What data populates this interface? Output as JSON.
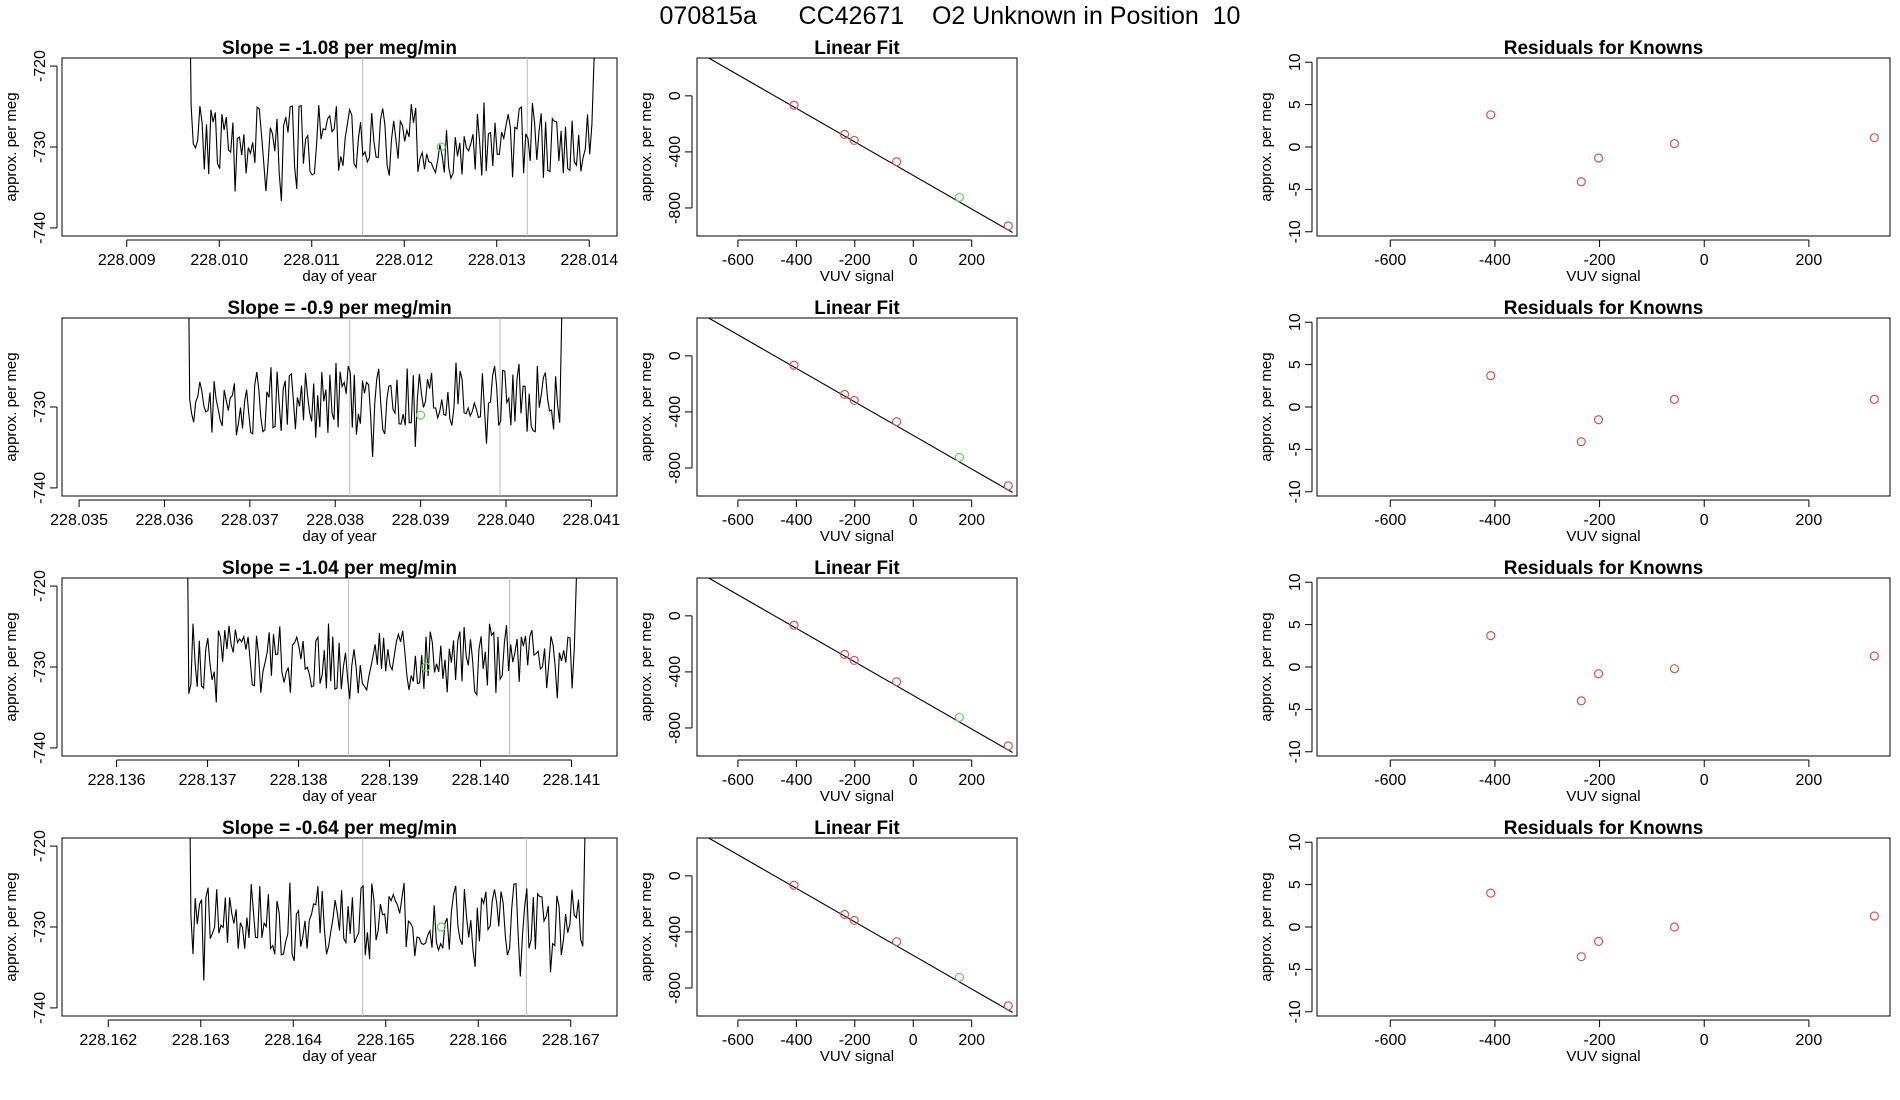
{
  "figure": {
    "title": "070815a      CC42671    O2 Unknown in Position  10",
    "colors": {
      "line": "#000000",
      "known": "#d9534f",
      "unknown": "#5cd65c",
      "marker": "#bbbbbb"
    }
  },
  "chart_data": [
    {
      "type": "line",
      "panel": "timeseries",
      "row": 0,
      "title": "Slope =  -1.08  per meg/min",
      "xlabel": "day of year",
      "ylabel": "approx. per meg",
      "xlim": [
        228.0083,
        228.0143
      ],
      "ylim": [
        -741,
        -719
      ],
      "xticks": [
        "228.009",
        "228.010",
        "228.011",
        "228.012",
        "228.013",
        "228.014"
      ],
      "yticks": [
        "-720",
        "-730",
        "-740"
      ],
      "start": 228.0096,
      "end": 228.0141,
      "markers": [
        228.01155,
        228.01333
      ],
      "unknown_point": [
        228.0124,
        -730.0
      ],
      "series": [
        {
          "name": "signal",
          "x": [],
          "y": []
        }
      ]
    },
    {
      "type": "scatter",
      "panel": "linear-fit",
      "row": 0,
      "title": "Linear Fit",
      "xlabel": "VUV signal",
      "ylabel": "approx. per meg",
      "xlim": [
        -740,
        355
      ],
      "ylim": [
        -1000,
        270
      ],
      "xticks": [
        "-600",
        "-400",
        "-200",
        "0",
        "200"
      ],
      "yticks": [
        "0",
        "-400",
        "-800"
      ],
      "fit_line": {
        "x": [
          -700,
          340
        ],
        "y": [
          270,
          -975
        ]
      },
      "knowns": {
        "x": [
          -408,
          -235,
          -202,
          -57,
          325
        ],
        "y": [
          -67,
          -275,
          -318,
          -470,
          -928
        ]
      },
      "unknowns": {
        "x": [
          158
        ],
        "y": [
          -724
        ]
      }
    },
    {
      "type": "scatter",
      "panel": "residuals",
      "row": 0,
      "title": "Residuals for Knowns",
      "xlabel": "VUV signal",
      "ylabel": "approx. per meg",
      "xlim": [
        -740,
        355
      ],
      "ylim": [
        -10.5,
        10.5
      ],
      "xticks": [
        "-600",
        "-400",
        "-200",
        "0",
        "200"
      ],
      "yticks": [
        "10",
        "5",
        "0",
        "-5",
        "-10"
      ],
      "knowns": {
        "x": [
          -408,
          -235,
          -202,
          -57,
          325
        ],
        "y": [
          3.8,
          -4.1,
          -1.3,
          0.4,
          1.1
        ]
      }
    },
    {
      "type": "line",
      "panel": "timeseries",
      "row": 1,
      "title": "Slope =  -0.9  per meg/min",
      "xlabel": "day of year",
      "ylabel": "approx. per meg",
      "xlim": [
        228.0348,
        228.0413
      ],
      "ylim": [
        -741,
        -719
      ],
      "xticks": [
        "228.035",
        "228.036",
        "228.037",
        "228.038",
        "228.039",
        "228.040",
        "228.041"
      ],
      "yticks": [
        "-730",
        "-740"
      ],
      "start": 228.0362,
      "end": 228.0407,
      "markers": [
        228.03817,
        228.03993
      ],
      "unknown_point": [
        228.039,
        -731.0
      ],
      "series": [
        {
          "name": "signal",
          "x": [],
          "y": []
        }
      ]
    },
    {
      "type": "scatter",
      "panel": "linear-fit",
      "row": 1,
      "title": "Linear Fit",
      "xlabel": "VUV signal",
      "ylabel": "approx. per meg",
      "xlim": [
        -740,
        355
      ],
      "ylim": [
        -1000,
        270
      ],
      "xticks": [
        "-600",
        "-400",
        "-200",
        "0",
        "200"
      ],
      "yticks": [
        "0",
        "-400",
        "-800"
      ],
      "fit_line": {
        "x": [
          -700,
          340
        ],
        "y": [
          270,
          -975
        ]
      },
      "knowns": {
        "x": [
          -408,
          -235,
          -202,
          -57,
          325
        ],
        "y": [
          -67,
          -275,
          -318,
          -470,
          -928
        ]
      },
      "unknowns": {
        "x": [
          158
        ],
        "y": [
          -724
        ]
      }
    },
    {
      "type": "scatter",
      "panel": "residuals",
      "row": 1,
      "title": "Residuals for Knowns",
      "xlabel": "VUV signal",
      "ylabel": "approx. per meg",
      "xlim": [
        -740,
        355
      ],
      "ylim": [
        -10.5,
        10.5
      ],
      "xticks": [
        "-600",
        "-400",
        "-200",
        "0",
        "200"
      ],
      "yticks": [
        "10",
        "5",
        "0",
        "-5",
        "-10"
      ],
      "knowns": {
        "x": [
          -408,
          -235,
          -202,
          -57,
          325
        ],
        "y": [
          3.7,
          -4.1,
          -1.5,
          0.9,
          0.9
        ]
      }
    },
    {
      "type": "line",
      "panel": "timeseries",
      "row": 2,
      "title": "Slope =  -1.04  per meg/min",
      "xlabel": "day of year",
      "ylabel": "approx. per meg",
      "xlim": [
        228.1354,
        228.1415
      ],
      "ylim": [
        -741,
        -719
      ],
      "xticks": [
        "228.136",
        "228.137",
        "228.138",
        "228.139",
        "228.140",
        "228.141"
      ],
      "yticks": [
        "-720",
        "-730",
        "-740"
      ],
      "start": 228.1367,
      "end": 228.1411,
      "markers": [
        228.13855,
        228.14032
      ],
      "unknown_point": [
        228.1394,
        -730.0
      ],
      "series": [
        {
          "name": "signal",
          "x": [],
          "y": []
        }
      ]
    },
    {
      "type": "scatter",
      "panel": "linear-fit",
      "row": 2,
      "title": "Linear Fit",
      "xlabel": "VUV signal",
      "ylabel": "approx. per meg",
      "xlim": [
        -740,
        355
      ],
      "ylim": [
        -1000,
        270
      ],
      "xticks": [
        "-600",
        "-400",
        "-200",
        "0",
        "200"
      ],
      "yticks": [
        "0",
        "-400",
        "-800"
      ],
      "fit_line": {
        "x": [
          -700,
          340
        ],
        "y": [
          270,
          -975
        ]
      },
      "knowns": {
        "x": [
          -408,
          -235,
          -202,
          -57,
          325
        ],
        "y": [
          -67,
          -275,
          -318,
          -470,
          -928
        ]
      },
      "unknowns": {
        "x": [
          158
        ],
        "y": [
          -724
        ]
      }
    },
    {
      "type": "scatter",
      "panel": "residuals",
      "row": 2,
      "title": "Residuals for Knowns",
      "xlabel": "VUV signal",
      "ylabel": "approx. per meg",
      "xlim": [
        -740,
        355
      ],
      "ylim": [
        -10.5,
        10.5
      ],
      "xticks": [
        "-600",
        "-400",
        "-200",
        "0",
        "200"
      ],
      "yticks": [
        "10",
        "5",
        "0",
        "-5",
        "-10"
      ],
      "knowns": {
        "x": [
          -408,
          -235,
          -202,
          -57,
          325
        ],
        "y": [
          3.7,
          -4.0,
          -0.8,
          -0.2,
          1.3
        ]
      }
    },
    {
      "type": "line",
      "panel": "timeseries",
      "row": 3,
      "title": "Slope =  -0.64  per meg/min",
      "xlabel": "day of year",
      "ylabel": "approx. per meg",
      "xlim": [
        228.1615,
        228.1675
      ],
      "ylim": [
        -741,
        -719
      ],
      "xticks": [
        "228.162",
        "228.163",
        "228.164",
        "228.165",
        "228.166",
        "228.167"
      ],
      "yticks": [
        "-720",
        "-730",
        "-740"
      ],
      "start": 228.1628,
      "end": 228.1672,
      "markers": [
        228.16475,
        228.16652
      ],
      "unknown_point": [
        228.1656,
        -730.0
      ],
      "series": [
        {
          "name": "signal",
          "x": [],
          "y": []
        }
      ]
    },
    {
      "type": "scatter",
      "panel": "linear-fit",
      "row": 3,
      "title": "Linear Fit",
      "xlabel": "VUV signal",
      "ylabel": "approx. per meg",
      "xlim": [
        -740,
        355
      ],
      "ylim": [
        -1000,
        270
      ],
      "xticks": [
        "-600",
        "-400",
        "-200",
        "0",
        "200"
      ],
      "yticks": [
        "0",
        "-400",
        "-800"
      ],
      "fit_line": {
        "x": [
          -700,
          340
        ],
        "y": [
          270,
          -975
        ]
      },
      "knowns": {
        "x": [
          -408,
          -235,
          -202,
          -57,
          325
        ],
        "y": [
          -67,
          -275,
          -318,
          -470,
          -928
        ]
      },
      "unknowns": {
        "x": [
          158
        ],
        "y": [
          -724
        ]
      }
    },
    {
      "type": "scatter",
      "panel": "residuals",
      "row": 3,
      "title": "Residuals for Knowns",
      "xlabel": "VUV signal",
      "ylabel": "approx. per meg",
      "xlim": [
        -740,
        355
      ],
      "ylim": [
        -10.5,
        10.5
      ],
      "xticks": [
        "-600",
        "-400",
        "-200",
        "0",
        "200"
      ],
      "yticks": [
        "10",
        "5",
        "0",
        "-5",
        "-10"
      ],
      "knowns": {
        "x": [
          -408,
          -235,
          -202,
          -57,
          325
        ],
        "y": [
          4.0,
          -3.5,
          -1.7,
          0.0,
          1.3
        ]
      }
    }
  ]
}
